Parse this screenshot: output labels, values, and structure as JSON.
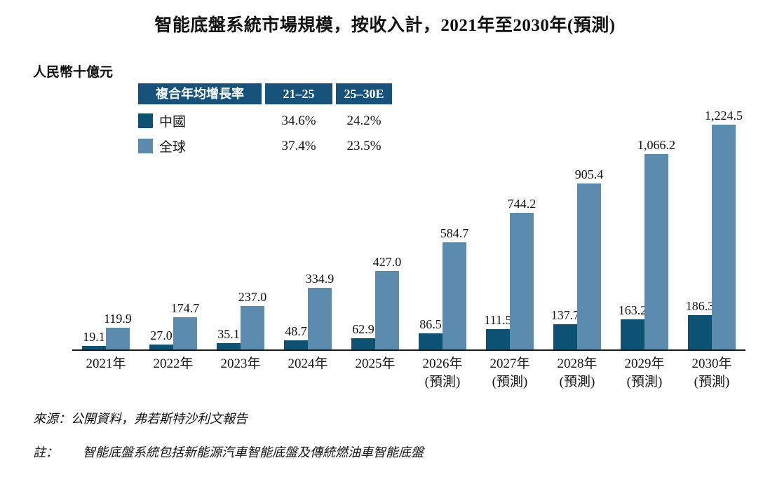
{
  "title": "智能底盤系統市場規模，按收入計，2021年至2030年(預測)",
  "unit_label": "人民幣十億元",
  "colors": {
    "china_series": "#0d5173",
    "global_series": "#5b8cad",
    "legend_header_bg": "#16527a",
    "axis_line": "#1a1a1a"
  },
  "legend": {
    "header": [
      "複合年均增長率",
      "21–25",
      "25–30E"
    ],
    "rows": [
      {
        "label": "中國",
        "color": "#0d5173",
        "cagr_21_25": "34.6%",
        "cagr_25_30e": "24.2%"
      },
      {
        "label": "全球",
        "color": "#5b8cad",
        "cagr_21_25": "37.4%",
        "cagr_25_30e": "23.5%"
      }
    ]
  },
  "chart_data": {
    "type": "bar",
    "title": "智能底盤系統市場規模，按收入計，2021年至2030年(預測)",
    "ylabel": "人民幣十億元",
    "categories": [
      "2021年",
      "2022年",
      "2023年",
      "2024年",
      "2025年",
      "2026年\n(預測)",
      "2027年\n(預測)",
      "2028年\n(預測)",
      "2029年\n(預測)",
      "2030年\n(預測)"
    ],
    "series": [
      {
        "name": "中國",
        "color": "#0d5173",
        "values": [
          19.1,
          27.0,
          35.1,
          48.7,
          62.9,
          86.5,
          111.5,
          137.7,
          163.2,
          186.3
        ],
        "labels": [
          "19.1",
          "27.0",
          "35.1",
          "48.7",
          "62.9",
          "86.5",
          "111.5",
          "137.7",
          "163.2",
          "186.3"
        ],
        "cagr_21_25": "34.6%",
        "cagr_25_30e": "24.2%"
      },
      {
        "name": "全球",
        "color": "#5b8cad",
        "values": [
          119.9,
          174.7,
          237.0,
          334.9,
          427.0,
          584.7,
          744.2,
          905.4,
          1066.2,
          1224.5
        ],
        "labels": [
          "119.9",
          "174.7",
          "237.0",
          "334.9",
          "427.0",
          "584.7",
          "744.2",
          "905.4",
          "1,066.2",
          "1,224.5"
        ],
        "cagr_21_25": "37.4%",
        "cagr_25_30e": "23.5%"
      }
    ],
    "ylim": [
      0,
      1300
    ],
    "grid": false,
    "value_labels_shown": true,
    "legend_position": "top-left-table"
  },
  "source": "來源：公開資料，弗若斯特沙利文報告",
  "note_label": "註：",
  "note": "智能底盤系統包括新能源汽車智能底盤及傳統燃油車智能底盤"
}
